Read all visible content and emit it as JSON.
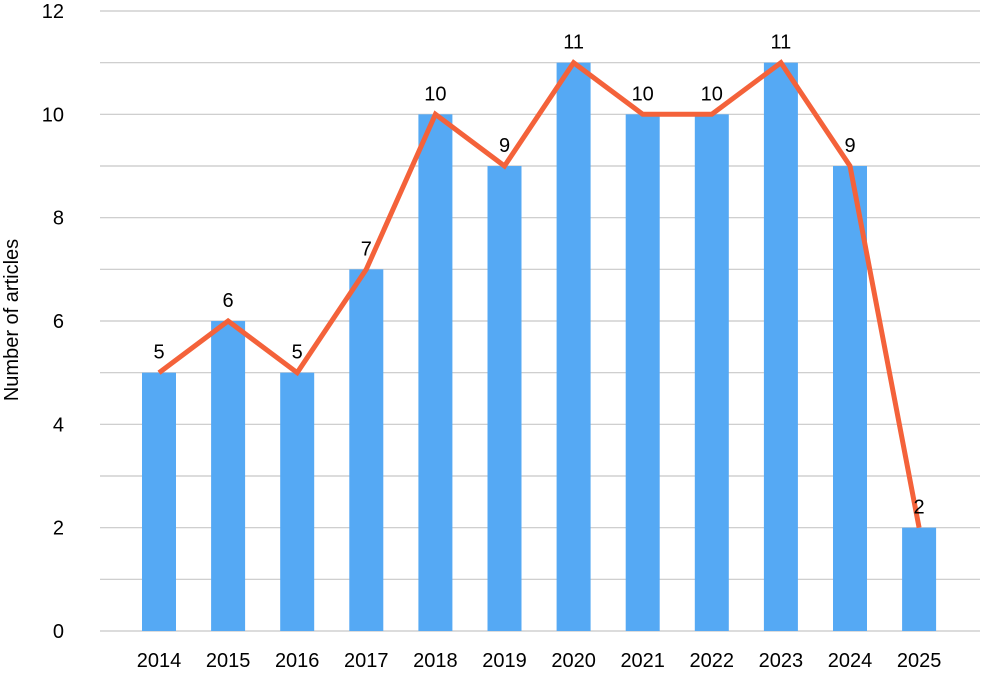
{
  "chart_data": {
    "type": "bar",
    "categories": [
      "2014",
      "2015",
      "2016",
      "2017",
      "2018",
      "2019",
      "2020",
      "2021",
      "2022",
      "2023",
      "2024",
      "2025"
    ],
    "series": [
      {
        "values": [
          5,
          6,
          5,
          7,
          10,
          9,
          11,
          10,
          10,
          11,
          9,
          2
        ]
      }
    ],
    "overlay_line": {
      "values": [
        5,
        6,
        5,
        7,
        10,
        9,
        11,
        10,
        10,
        11,
        9,
        2
      ]
    },
    "data_labels": [
      "5",
      "6",
      "5",
      "7",
      "10",
      "9",
      "11",
      "10",
      "10",
      "11",
      "9",
      "2"
    ],
    "ylabel": "Number of articles",
    "xlabel": "",
    "title": "",
    "ylim": [
      0,
      12
    ],
    "y_ticks": [
      "0",
      "2",
      "4",
      "6",
      "8",
      "10",
      "12"
    ],
    "minor_gridline_step": 1,
    "grid": true,
    "legend": "none",
    "colors": {
      "bar": "#55A9F4",
      "line": "#F4623A",
      "grid": "#C8C8C8"
    }
  }
}
